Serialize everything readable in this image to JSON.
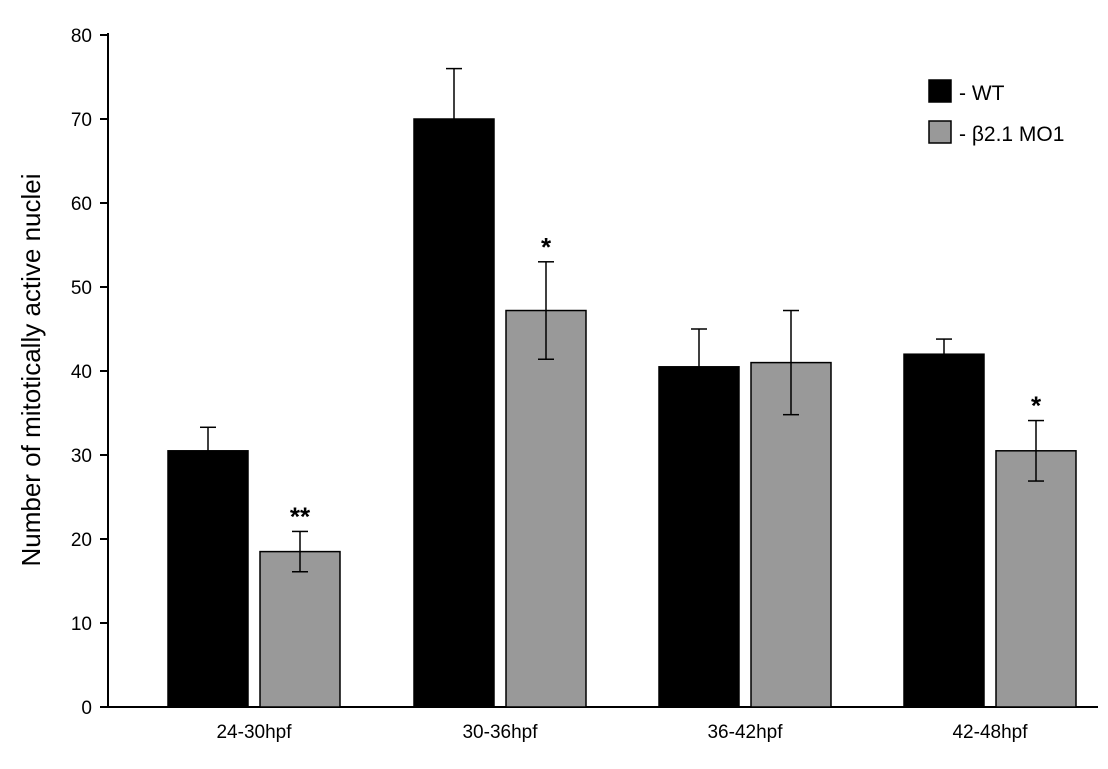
{
  "chart_data": {
    "type": "bar",
    "title": "",
    "xlabel": "",
    "ylabel": "Number of mitotically active nuclei",
    "ylim": [
      0,
      80
    ],
    "yticks": [
      0,
      10,
      20,
      30,
      40,
      50,
      60,
      70,
      80
    ],
    "categories": [
      "24-30hpf",
      "30-36hpf",
      "36-42hpf",
      "42-48hpf"
    ],
    "series": [
      {
        "name": "- WT",
        "color": "#000000",
        "values": [
          30.5,
          70.0,
          40.5,
          42.0
        ],
        "error": [
          2.8,
          6.0,
          4.5,
          1.8
        ],
        "significance": [
          "",
          "",
          "",
          ""
        ]
      },
      {
        "name": "- β2.1 MO1",
        "color": "#999999",
        "values": [
          18.5,
          47.2,
          41.0,
          30.5
        ],
        "error": [
          2.4,
          5.8,
          6.2,
          3.6
        ],
        "significance": [
          "**",
          "*",
          "",
          "*"
        ]
      }
    ],
    "legend_position": "top-right",
    "grid": false
  }
}
